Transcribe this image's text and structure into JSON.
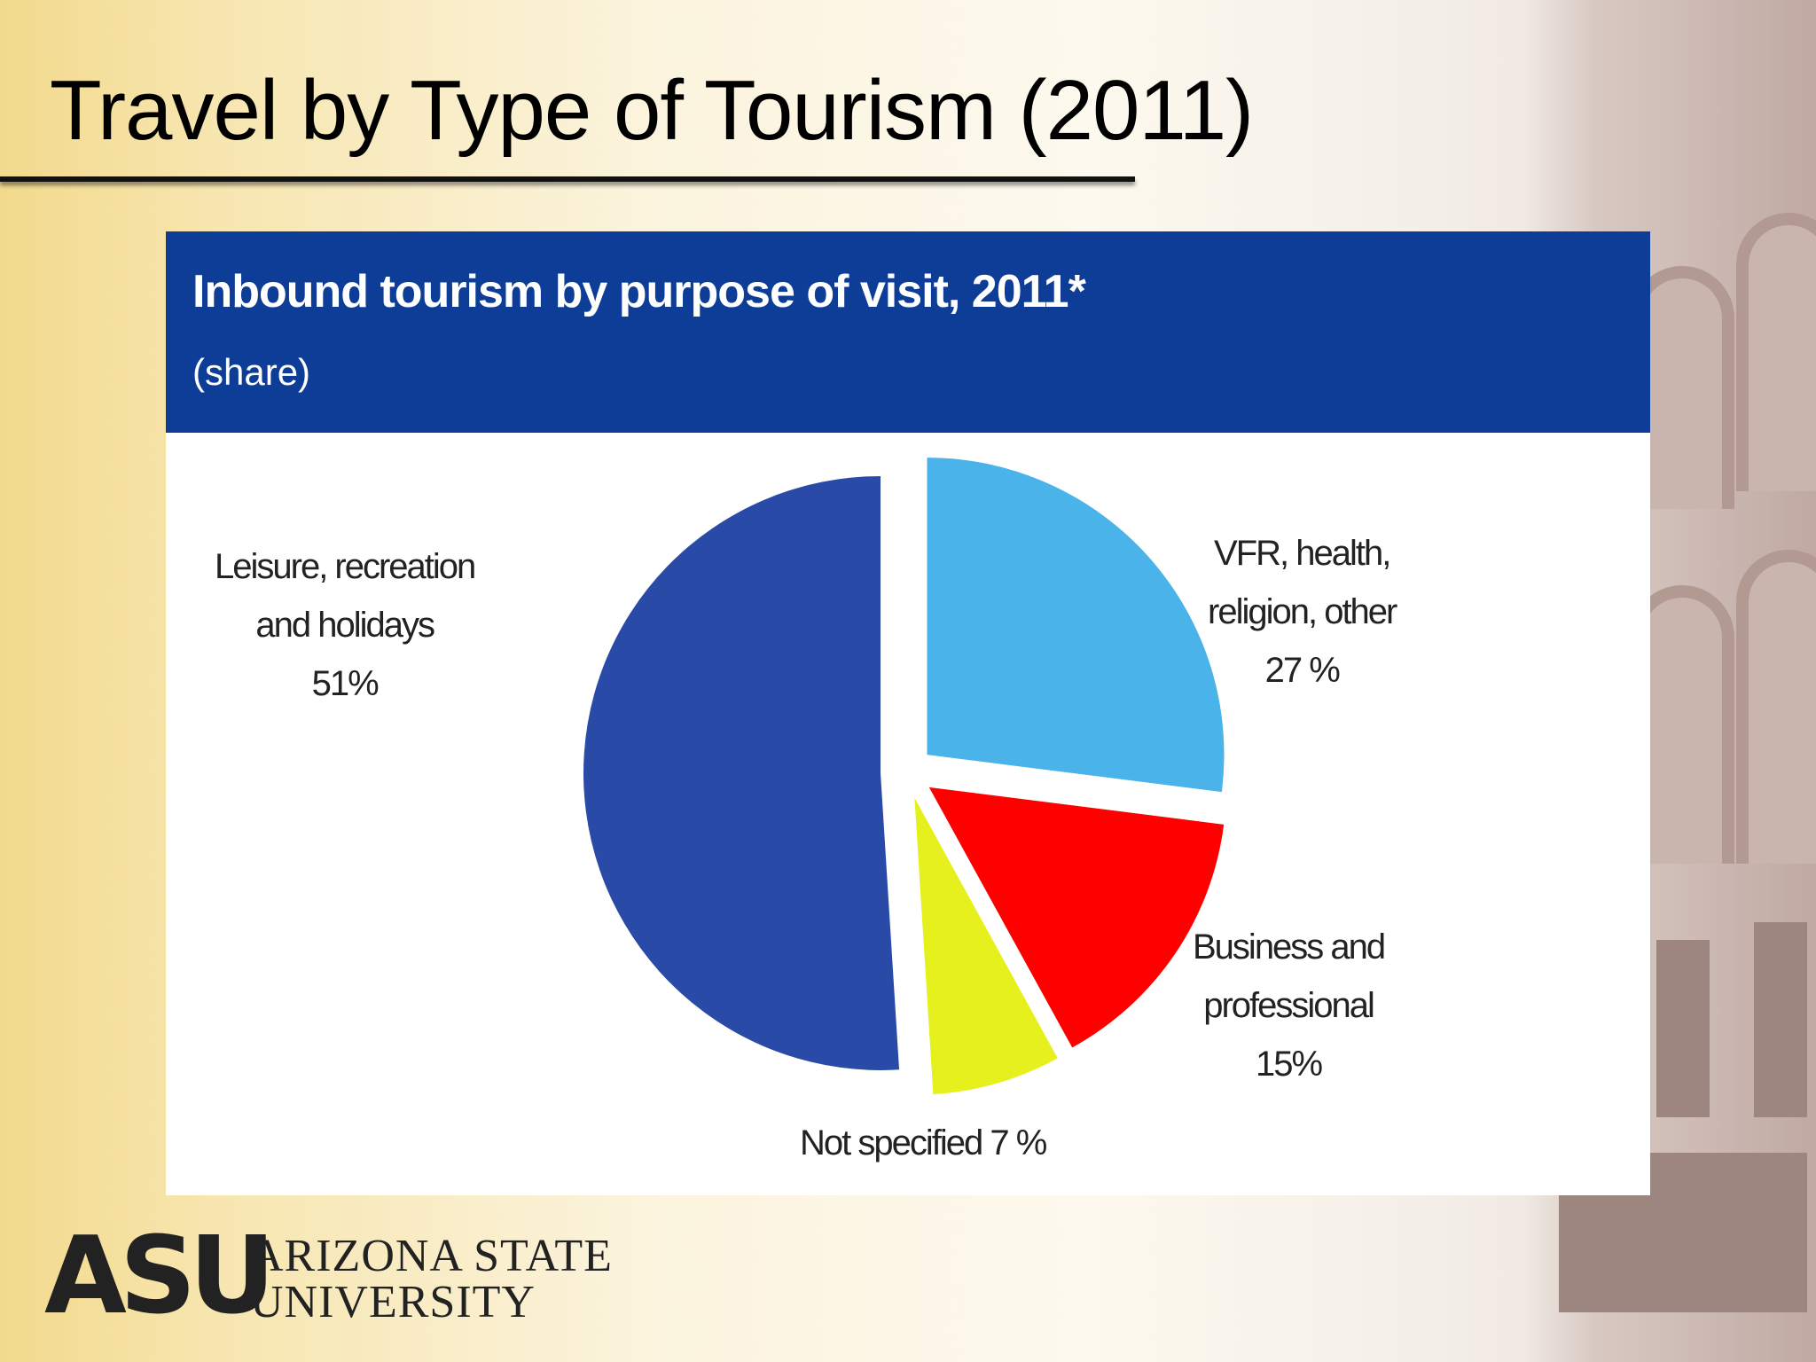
{
  "slide": {
    "title": "Travel by Type of Tourism (2011)"
  },
  "logo": {
    "mark": "ASU",
    "name_line1": "ARIZONA STATE",
    "name_line2": "UNIVERSITY"
  },
  "chart_data": {
    "type": "pie",
    "title": "Inbound tourism by purpose of visit, 2011*",
    "subtitle": "(share)",
    "exploded": true,
    "start": "12 o'clock",
    "direction": "clockwise",
    "slices": [
      {
        "label_lines": [
          "VFR, health,",
          "religion, other",
          "27 %"
        ],
        "name": "VFR, health, religion, other",
        "value": 27,
        "color": "#4ab3ea"
      },
      {
        "label_lines": [
          "Business and",
          "professional",
          "15%"
        ],
        "name": "Business and professional",
        "value": 15,
        "color": "#ff0000"
      },
      {
        "label_lines": [
          "Not specified 7 %"
        ],
        "name": "Not specified",
        "value": 7,
        "color": "#e6f01c"
      },
      {
        "label_lines": [
          "Leisure, recreation",
          "and holidays",
          "51%"
        ],
        "name": "Leisure, recreation and holidays",
        "value": 51,
        "color": "#2a4aa8"
      }
    ]
  }
}
